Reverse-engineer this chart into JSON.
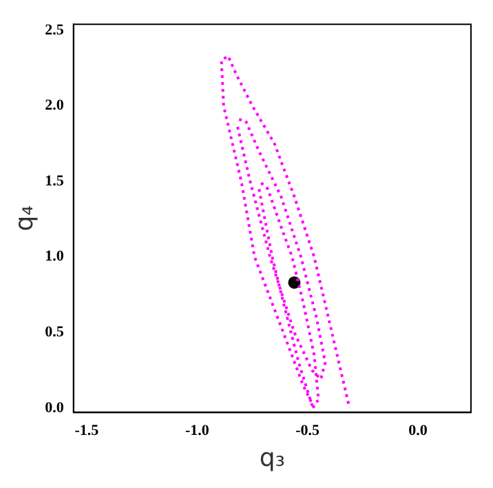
{
  "chart_data": {
    "type": "line",
    "xlabel": "q₃",
    "ylabel": "q₄",
    "xlim": [
      -1.56,
      0.24
    ],
    "ylim": [
      -0.03,
      2.54
    ],
    "xticks": [
      {
        "value": -1.5,
        "label": "-1.5"
      },
      {
        "value": -1.0,
        "label": "-1.0"
      },
      {
        "value": -0.5,
        "label": "-0.5"
      },
      {
        "value": 0.0,
        "label": "0.0"
      }
    ],
    "yticks": [
      {
        "value": 0.0,
        "label": "0.0"
      },
      {
        "value": 0.5,
        "label": "0.5"
      },
      {
        "value": 1.0,
        "label": "1.0"
      },
      {
        "value": 1.5,
        "label": "1.5"
      },
      {
        "value": 2.0,
        "label": "2.0"
      },
      {
        "value": 2.5,
        "label": "2.5"
      }
    ],
    "grid": false,
    "legend": false,
    "series": [
      {
        "color": "#ff00ff",
        "line_style": "dotted",
        "marker": "none",
        "x": [
          -0.47,
          -0.52,
          -0.61,
          -0.74,
          -0.8,
          -0.88,
          -0.89,
          -0.86,
          -0.82,
          -0.75,
          -0.65,
          -0.56,
          -0.47,
          -0.39,
          -0.31
        ],
        "values": [
          0.0,
          0.15,
          0.5,
          1.0,
          1.5,
          2.0,
          2.3,
          2.33,
          2.2,
          2.0,
          1.75,
          1.4,
          1.0,
          0.5,
          0.0
        ]
      },
      {
        "color": "#ff00ff",
        "line_style": "dotted",
        "marker": "none",
        "x": [
          -0.81,
          -0.78,
          -0.72,
          -0.62,
          -0.53,
          -0.46,
          -0.42,
          -0.44,
          -0.48,
          -0.56,
          -0.67,
          -0.76,
          -0.82
        ],
        "values": [
          1.91,
          1.9,
          1.7,
          1.4,
          1.0,
          0.6,
          0.3,
          0.19,
          0.25,
          0.5,
          1.0,
          1.5,
          1.88
        ]
      },
      {
        "color": "#ff00ff",
        "line_style": "dotted",
        "marker": "none",
        "x": [
          -0.71,
          -0.68,
          -0.62,
          -0.57,
          -0.52,
          -0.47,
          -0.45,
          -0.48,
          -0.54,
          -0.61,
          -0.66,
          -0.7,
          -0.72
        ],
        "values": [
          1.49,
          1.45,
          1.2,
          1.0,
          0.7,
          0.35,
          0.05,
          0.02,
          0.3,
          0.7,
          1.0,
          1.3,
          1.45
        ]
      },
      {
        "type": "scatter",
        "color": "#000000",
        "marker": "circle",
        "x": [
          -0.56
        ],
        "values": [
          0.83
        ]
      }
    ]
  }
}
